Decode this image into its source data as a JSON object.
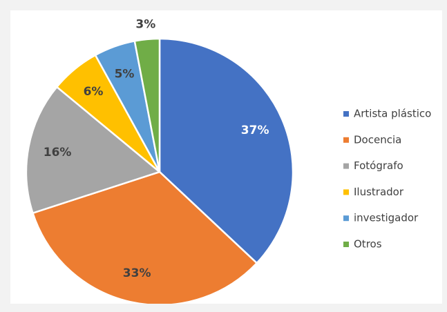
{
  "chart_data": {
    "type": "pie",
    "categories": [
      "Artista plástico",
      "Docencia",
      "Fotógrafo",
      "Ilustrador",
      "investigador",
      "Otros"
    ],
    "values": [
      37,
      33,
      16,
      6,
      5,
      3
    ],
    "value_labels": [
      "37%",
      "33%",
      "16%",
      "6%",
      "5%",
      "3%"
    ],
    "colors": [
      "#4472c4",
      "#ed7d31",
      "#a5a5a5",
      "#ffc000",
      "#5b9bd5",
      "#70ad47"
    ],
    "legend": "right"
  }
}
